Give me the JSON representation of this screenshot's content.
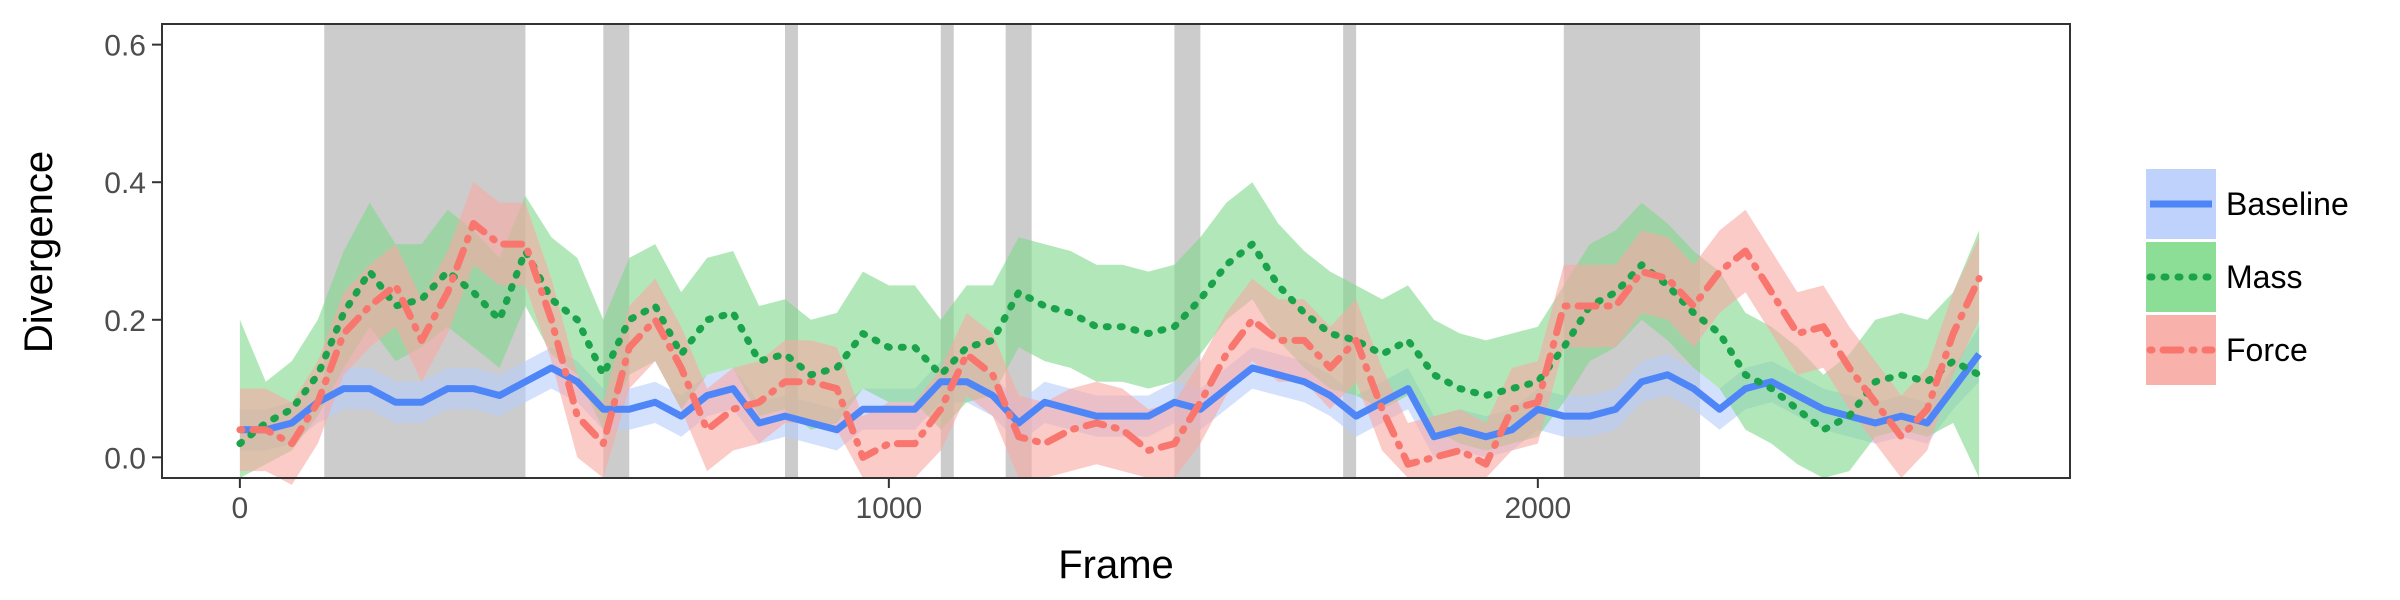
{
  "chart_data": {
    "type": "line",
    "title": "",
    "xlabel": "Frame",
    "ylabel": "Divergence",
    "xlim": [
      -120,
      2820
    ],
    "ylim": [
      -0.03,
      0.63
    ],
    "x_ticks": [
      0,
      1000,
      2000
    ],
    "x_tick_labels": [
      "0",
      "1000",
      "2000"
    ],
    "y_ticks": [
      0.0,
      0.2,
      0.4,
      0.6
    ],
    "y_tick_labels": [
      "0.0",
      "0.2",
      "0.4",
      "0.6"
    ],
    "grid": false,
    "legend_position": "right",
    "shaded_regions": [
      [
        130,
        440
      ],
      [
        560,
        600
      ],
      [
        840,
        860
      ],
      [
        1080,
        1100
      ],
      [
        1180,
        1220
      ],
      [
        1440,
        1480
      ],
      [
        1700,
        1720
      ],
      [
        2040,
        2250
      ]
    ],
    "x": [
      0,
      40,
      80,
      120,
      160,
      200,
      240,
      280,
      320,
      360,
      400,
      440,
      480,
      520,
      560,
      600,
      640,
      680,
      720,
      760,
      800,
      840,
      880,
      920,
      960,
      1000,
      1040,
      1080,
      1120,
      1160,
      1200,
      1240,
      1280,
      1320,
      1360,
      1400,
      1440,
      1480,
      1520,
      1560,
      1600,
      1640,
      1680,
      1720,
      1760,
      1800,
      1840,
      1880,
      1920,
      1960,
      2000,
      2040,
      2080,
      2120,
      2160,
      2200,
      2240,
      2280,
      2320,
      2360,
      2400,
      2440,
      2480,
      2520,
      2560,
      2600,
      2640,
      2680
    ],
    "series": [
      {
        "name": "Baseline",
        "color": "#4f86f7",
        "band_color": "#b7cdfb",
        "style": "solid",
        "values": [
          0.04,
          0.04,
          0.05,
          0.08,
          0.1,
          0.1,
          0.08,
          0.08,
          0.1,
          0.1,
          0.09,
          0.11,
          0.13,
          0.11,
          0.07,
          0.07,
          0.08,
          0.06,
          0.09,
          0.1,
          0.05,
          0.06,
          0.05,
          0.04,
          0.07,
          0.07,
          0.07,
          0.11,
          0.11,
          0.09,
          0.05,
          0.08,
          0.07,
          0.06,
          0.06,
          0.06,
          0.08,
          0.07,
          0.1,
          0.13,
          0.12,
          0.11,
          0.09,
          0.06,
          0.08,
          0.1,
          0.03,
          0.04,
          0.03,
          0.04,
          0.07,
          0.06,
          0.06,
          0.07,
          0.11,
          0.12,
          0.1,
          0.07,
          0.1,
          0.11,
          0.09,
          0.07,
          0.06,
          0.05,
          0.06,
          0.05,
          0.1,
          0.15
        ],
        "lower": [
          0.01,
          0.01,
          0.02,
          0.05,
          0.07,
          0.07,
          0.05,
          0.05,
          0.07,
          0.07,
          0.06,
          0.08,
          0.1,
          0.08,
          0.04,
          0.04,
          0.05,
          0.03,
          0.06,
          0.07,
          0.02,
          0.03,
          0.02,
          0.01,
          0.04,
          0.04,
          0.04,
          0.08,
          0.08,
          0.06,
          0.02,
          0.05,
          0.04,
          0.03,
          0.03,
          0.03,
          0.05,
          0.04,
          0.07,
          0.1,
          0.09,
          0.08,
          0.06,
          0.03,
          0.05,
          0.07,
          0.0,
          0.01,
          0.0,
          0.01,
          0.04,
          0.03,
          0.03,
          0.04,
          0.08,
          0.09,
          0.07,
          0.04,
          0.07,
          0.08,
          0.06,
          0.04,
          0.03,
          0.02,
          0.03,
          0.02,
          0.07,
          0.11
        ],
        "upper": [
          0.07,
          0.07,
          0.08,
          0.11,
          0.13,
          0.13,
          0.11,
          0.11,
          0.13,
          0.13,
          0.12,
          0.14,
          0.16,
          0.14,
          0.1,
          0.1,
          0.11,
          0.09,
          0.12,
          0.13,
          0.08,
          0.09,
          0.08,
          0.07,
          0.1,
          0.1,
          0.1,
          0.14,
          0.14,
          0.12,
          0.08,
          0.11,
          0.1,
          0.09,
          0.09,
          0.09,
          0.11,
          0.1,
          0.13,
          0.16,
          0.15,
          0.14,
          0.12,
          0.09,
          0.11,
          0.13,
          0.06,
          0.07,
          0.06,
          0.07,
          0.1,
          0.09,
          0.09,
          0.1,
          0.14,
          0.15,
          0.13,
          0.1,
          0.13,
          0.14,
          0.12,
          0.1,
          0.09,
          0.08,
          0.09,
          0.08,
          0.13,
          0.19
        ]
      },
      {
        "name": "Mass",
        "color": "#1aa34a",
        "band_color": "#7fd98b",
        "style": "dotted",
        "values": [
          0.02,
          0.05,
          0.07,
          0.12,
          0.21,
          0.27,
          0.22,
          0.23,
          0.27,
          0.24,
          0.2,
          0.3,
          0.23,
          0.2,
          0.12,
          0.2,
          0.22,
          0.15,
          0.2,
          0.21,
          0.14,
          0.15,
          0.12,
          0.13,
          0.18,
          0.16,
          0.16,
          0.12,
          0.16,
          0.17,
          0.24,
          0.22,
          0.21,
          0.19,
          0.19,
          0.18,
          0.19,
          0.23,
          0.28,
          0.31,
          0.25,
          0.21,
          0.18,
          0.17,
          0.15,
          0.17,
          0.12,
          0.1,
          0.09,
          0.1,
          0.11,
          0.16,
          0.22,
          0.24,
          0.28,
          0.25,
          0.21,
          0.18,
          0.12,
          0.1,
          0.07,
          0.04,
          0.06,
          0.11,
          0.12,
          0.11,
          0.14,
          0.12
        ],
        "lower": [
          -0.03,
          -0.01,
          0.01,
          0.06,
          0.13,
          0.19,
          0.14,
          0.16,
          0.19,
          0.16,
          0.13,
          0.22,
          0.15,
          0.12,
          0.04,
          0.12,
          0.14,
          0.07,
          0.12,
          0.13,
          0.06,
          0.07,
          0.04,
          0.05,
          0.1,
          0.08,
          0.08,
          0.04,
          0.08,
          0.09,
          0.16,
          0.14,
          0.13,
          0.11,
          0.11,
          0.1,
          0.11,
          0.15,
          0.2,
          0.23,
          0.17,
          0.13,
          0.1,
          0.09,
          0.07,
          0.09,
          0.04,
          0.02,
          0.01,
          0.02,
          0.03,
          0.08,
          0.14,
          0.16,
          0.2,
          0.17,
          0.13,
          0.1,
          0.04,
          0.02,
          -0.01,
          -0.03,
          -0.02,
          0.03,
          0.04,
          0.03,
          0.05,
          -0.03
        ],
        "upper": [
          0.2,
          0.11,
          0.14,
          0.2,
          0.3,
          0.37,
          0.31,
          0.31,
          0.36,
          0.33,
          0.29,
          0.38,
          0.32,
          0.29,
          0.2,
          0.29,
          0.31,
          0.24,
          0.29,
          0.3,
          0.22,
          0.23,
          0.2,
          0.21,
          0.27,
          0.25,
          0.25,
          0.2,
          0.25,
          0.25,
          0.32,
          0.31,
          0.3,
          0.28,
          0.28,
          0.27,
          0.28,
          0.32,
          0.37,
          0.4,
          0.34,
          0.3,
          0.27,
          0.25,
          0.23,
          0.25,
          0.2,
          0.18,
          0.17,
          0.18,
          0.19,
          0.25,
          0.31,
          0.33,
          0.37,
          0.34,
          0.3,
          0.27,
          0.21,
          0.19,
          0.16,
          0.12,
          0.15,
          0.2,
          0.21,
          0.2,
          0.24,
          0.33
        ]
      },
      {
        "name": "Force",
        "color": "#f8766d",
        "band_color": "#f8a9a3",
        "style": "dotdash",
        "values": [
          0.04,
          0.04,
          0.02,
          0.08,
          0.18,
          0.22,
          0.25,
          0.17,
          0.24,
          0.34,
          0.31,
          0.31,
          0.2,
          0.06,
          0.02,
          0.16,
          0.2,
          0.13,
          0.04,
          0.07,
          0.08,
          0.11,
          0.11,
          0.1,
          0.0,
          0.02,
          0.02,
          0.07,
          0.15,
          0.12,
          0.03,
          0.02,
          0.04,
          0.05,
          0.04,
          0.01,
          0.02,
          0.08,
          0.15,
          0.2,
          0.17,
          0.17,
          0.13,
          0.17,
          0.07,
          -0.01,
          0.0,
          0.01,
          -0.01,
          0.07,
          0.08,
          0.22,
          0.22,
          0.22,
          0.27,
          0.26,
          0.22,
          0.27,
          0.3,
          0.24,
          0.18,
          0.19,
          0.13,
          0.08,
          0.03,
          0.07,
          0.18,
          0.26
        ],
        "lower": [
          -0.02,
          -0.02,
          -0.04,
          0.02,
          0.12,
          0.16,
          0.19,
          0.11,
          0.18,
          0.28,
          0.25,
          0.25,
          0.14,
          0.0,
          -0.03,
          0.1,
          0.14,
          0.07,
          -0.02,
          0.01,
          0.02,
          0.05,
          0.05,
          0.04,
          -0.03,
          -0.03,
          -0.03,
          0.01,
          0.09,
          0.06,
          -0.03,
          -0.03,
          -0.02,
          -0.01,
          -0.02,
          -0.03,
          -0.03,
          0.02,
          0.09,
          0.14,
          0.11,
          0.11,
          0.07,
          0.11,
          0.01,
          -0.03,
          -0.03,
          -0.03,
          -0.03,
          0.01,
          0.02,
          0.16,
          0.16,
          0.16,
          0.21,
          0.2,
          0.16,
          0.21,
          0.24,
          0.18,
          0.12,
          0.13,
          0.07,
          0.02,
          -0.03,
          0.01,
          0.12,
          0.2
        ],
        "upper": [
          0.1,
          0.1,
          0.08,
          0.14,
          0.24,
          0.28,
          0.31,
          0.23,
          0.3,
          0.4,
          0.37,
          0.37,
          0.26,
          0.12,
          0.08,
          0.22,
          0.26,
          0.19,
          0.1,
          0.13,
          0.14,
          0.17,
          0.17,
          0.16,
          0.06,
          0.08,
          0.08,
          0.13,
          0.21,
          0.18,
          0.09,
          0.08,
          0.1,
          0.11,
          0.1,
          0.07,
          0.08,
          0.14,
          0.21,
          0.26,
          0.23,
          0.23,
          0.19,
          0.23,
          0.13,
          0.05,
          0.06,
          0.07,
          0.05,
          0.13,
          0.14,
          0.28,
          0.28,
          0.28,
          0.33,
          0.32,
          0.28,
          0.33,
          0.36,
          0.3,
          0.24,
          0.25,
          0.19,
          0.14,
          0.09,
          0.13,
          0.24,
          0.32
        ]
      }
    ]
  }
}
